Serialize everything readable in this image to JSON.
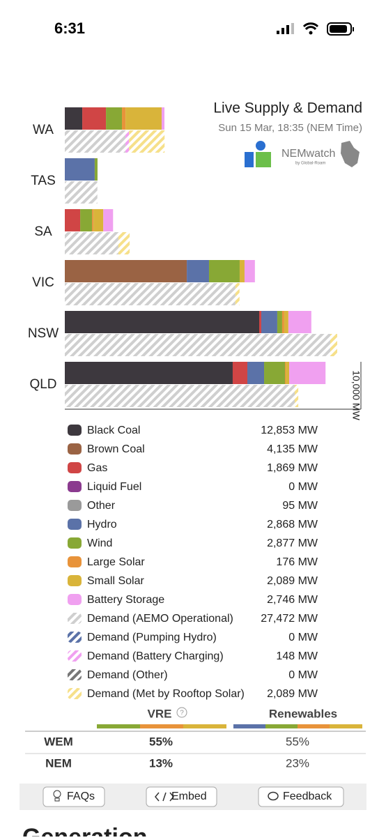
{
  "status_bar": {
    "time": "6:31"
  },
  "logo": {
    "name": "NEMwatch",
    "byline": "by Global-Roam"
  },
  "chart_data": {
    "type": "stacked-barh",
    "title": "Live Supply & Demand",
    "subtitle": "Sun 15 Mar, 18:35 (NEM Time)",
    "categories": [
      "WA",
      "TAS",
      "SA",
      "VIC",
      "NSW",
      "QLD"
    ],
    "xlim": [
      0,
      10000
    ],
    "xticks": [
      {
        "value": 10000,
        "label": "10,000 MW"
      }
    ],
    "series": [
      {
        "name": "Black Coal",
        "color": "#3d383e",
        "stack": "supply",
        "total": "12,853 MW",
        "values": [
          590,
          0,
          0,
          0,
          6565,
          5670
        ]
      },
      {
        "name": "Brown Coal",
        "color": "#9a6344",
        "stack": "supply",
        "total": "4,135 MW",
        "values": [
          0,
          0,
          0,
          4120,
          0,
          0
        ]
      },
      {
        "name": "Gas",
        "color": "#d04545",
        "stack": "supply",
        "total": "1,869 MW",
        "values": [
          800,
          0,
          520,
          0,
          70,
          495
        ]
      },
      {
        "name": "Liquid Fuel",
        "color": "#8b3a8f",
        "stack": "supply",
        "total": "0 MW",
        "values": [
          0,
          0,
          0,
          0,
          0,
          0
        ]
      },
      {
        "name": "Other",
        "color": "#9a9a9a",
        "stack": "supply",
        "total": "95 MW",
        "values": [
          0,
          0,
          0,
          0,
          0,
          0
        ]
      },
      {
        "name": "Hydro",
        "color": "#5b72a8",
        "stack": "supply",
        "total": "2,868 MW",
        "values": [
          0,
          1010,
          0,
          750,
          540,
          565
        ]
      },
      {
        "name": "Wind",
        "color": "#88a835",
        "stack": "supply",
        "total": "2,877 MW",
        "values": [
          540,
          95,
          400,
          1035,
          165,
          705
        ]
      },
      {
        "name": "Large Solar",
        "color": "#e8933a",
        "stack": "supply",
        "total": "176 MW",
        "values": [
          120,
          0,
          50,
          0,
          70,
          25
        ]
      },
      {
        "name": "Small Solar",
        "color": "#d9b43a",
        "stack": "supply",
        "total": "2,089 MW",
        "values": [
          1220,
          0,
          330,
          165,
          140,
          120
        ]
      },
      {
        "name": "Battery Storage",
        "color": "#f0a0f0",
        "stack": "supply",
        "total": "2,746 MW",
        "values": [
          95,
          0,
          330,
          350,
          775,
          1225
        ]
      },
      {
        "name": "Demand (AEMO Operational)",
        "color": "#cfcfcf",
        "stack": "demand",
        "pattern": "hatch",
        "total": "27,472 MW",
        "values": [
          2050,
          1100,
          1810,
          5760,
          8965,
          7765
        ]
      },
      {
        "name": "Demand (Pumping Hydro)",
        "color": "#5b72a8",
        "stack": "demand",
        "pattern": "hatch",
        "total": "0 MW",
        "values": [
          0,
          0,
          0,
          0,
          0,
          0
        ]
      },
      {
        "name": "Demand (Battery Charging)",
        "color": "#f0a0f0",
        "stack": "demand",
        "pattern": "hatch",
        "total": "148 MW",
        "values": [
          120,
          0,
          0,
          0,
          0,
          0
        ]
      },
      {
        "name": "Demand (Other)",
        "color": "#777777",
        "stack": "demand",
        "pattern": "hatch",
        "total": "0 MW",
        "values": [
          0,
          0,
          0,
          0,
          0,
          0
        ]
      },
      {
        "name": "Demand (Met by Rooftop Solar)",
        "color": "#f6e08a",
        "stack": "demand",
        "pattern": "hatch",
        "total": "2,089 MW",
        "values": [
          1200,
          0,
          380,
          140,
          235,
          120
        ]
      }
    ]
  },
  "table": {
    "header": [
      "VRE",
      "Renewables"
    ],
    "rows": [
      [
        "WEM",
        "55%",
        "55%"
      ],
      [
        "NEM",
        "13%",
        "23%"
      ]
    ]
  },
  "buttons": [
    "FAQs",
    "Embed",
    "Feedback"
  ],
  "section_heading": "Generation"
}
